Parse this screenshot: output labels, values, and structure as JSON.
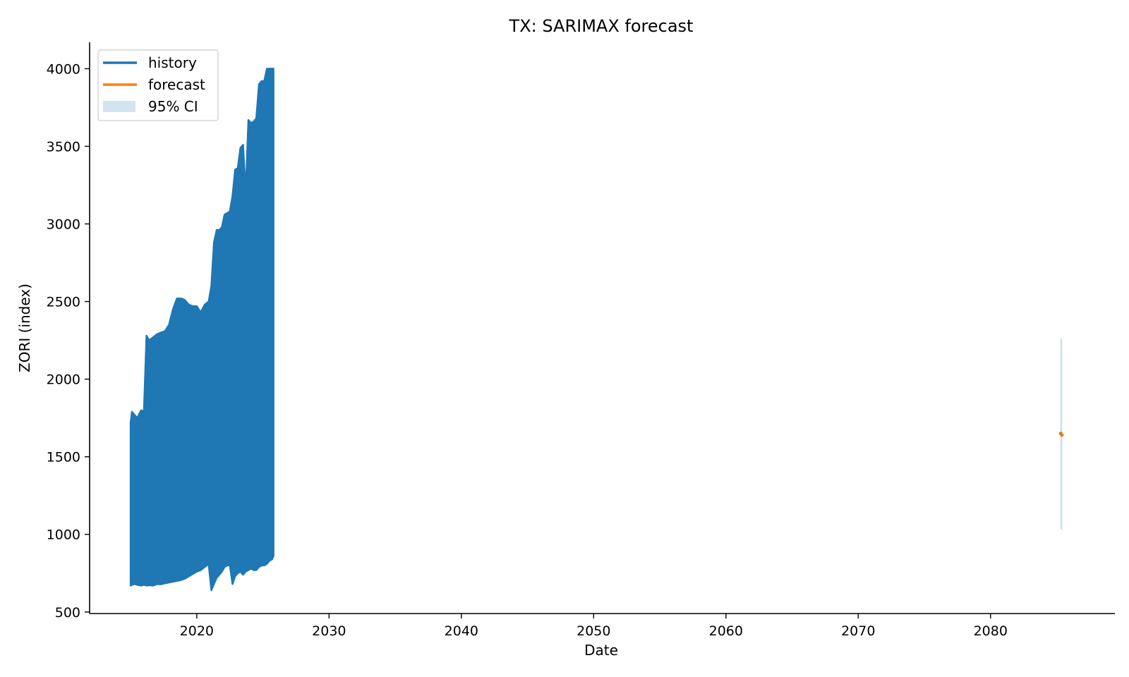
{
  "chart_data": {
    "type": "area",
    "title": "TX: SARIMAX forecast",
    "xlabel": "Date",
    "ylabel": "ZORI (index)",
    "xlim": [
      2011.9,
      2089.4
    ],
    "ylim": [
      490,
      4170
    ],
    "x_ticks": [
      2020,
      2030,
      2040,
      2050,
      2060,
      2070,
      2080
    ],
    "y_ticks": [
      500,
      1000,
      1500,
      2000,
      2500,
      3000,
      3500,
      4000
    ],
    "grid": false,
    "legend": {
      "position": "upper-left",
      "entries": [
        {
          "label": "history",
          "kind": "line",
          "color": "#1f77b4"
        },
        {
          "label": "forecast",
          "kind": "line",
          "color": "#ff7f0e"
        },
        {
          "label": "95% CI",
          "kind": "patch",
          "color": "#1f77b4",
          "opacity": 0.2
        }
      ]
    },
    "series": [
      {
        "name": "history",
        "color": "#1f77b4",
        "kind": "range-band",
        "x": [
          2015.0,
          2015.1,
          2015.3,
          2015.5,
          2015.8,
          2016.0,
          2016.2,
          2016.4,
          2016.7,
          2017.0,
          2017.3,
          2017.6,
          2017.9,
          2018.2,
          2018.5,
          2018.8,
          2019.1,
          2019.4,
          2019.7,
          2020.0,
          2020.3,
          2020.6,
          2020.9,
          2021.1,
          2021.3,
          2021.5,
          2021.7,
          2021.9,
          2022.1,
          2022.3,
          2022.5,
          2022.7,
          2022.9,
          2023.1,
          2023.3,
          2023.5,
          2023.7,
          2023.9,
          2024.1,
          2024.3,
          2024.5,
          2024.7,
          2024.9,
          2025.1,
          2025.3,
          2025.5,
          2025.7,
          2025.8
        ],
        "low": [
          670,
          675,
          680,
          675,
          670,
          675,
          670,
          672,
          670,
          680,
          678,
          685,
          690,
          695,
          700,
          705,
          715,
          730,
          745,
          760,
          770,
          790,
          810,
          640,
          680,
          720,
          740,
          760,
          790,
          800,
          800,
          680,
          730,
          750,
          760,
          740,
          760,
          770,
          780,
          770,
          770,
          790,
          800,
          800,
          810,
          830,
          840,
          860
        ],
        "high": [
          1720,
          1790,
          1770,
          1750,
          1800,
          1790,
          2280,
          2250,
          2270,
          2290,
          2300,
          2310,
          2350,
          2450,
          2520,
          2520,
          2510,
          2480,
          2470,
          2470,
          2430,
          2480,
          2500,
          2600,
          2880,
          2960,
          2960,
          2980,
          3060,
          3070,
          3080,
          3180,
          3350,
          3360,
          3490,
          3510,
          3200,
          3670,
          3650,
          3660,
          3680,
          3900,
          3920,
          3920,
          4000,
          4000,
          4000,
          4000
        ]
      },
      {
        "name": "forecast",
        "color": "#ff7f0e",
        "kind": "line",
        "x": [
          2085.3,
          2085.4
        ],
        "y": [
          1650,
          1640
        ]
      },
      {
        "name": "95% CI",
        "color": "#1f77b4",
        "kind": "band",
        "x": [
          2085.3,
          2085.4
        ],
        "low": [
          1030,
          1030
        ],
        "high": [
          2260,
          2260
        ]
      }
    ]
  }
}
